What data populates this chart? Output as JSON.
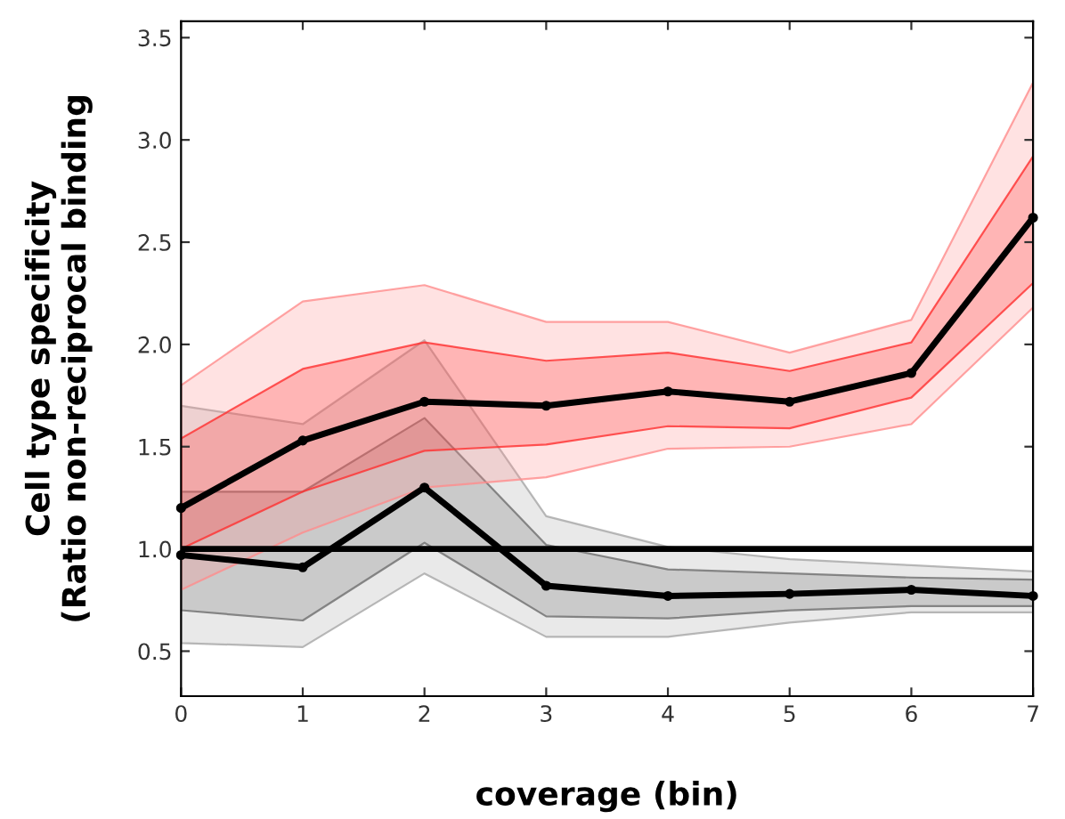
{
  "chart_data": {
    "type": "line",
    "xlabel": "coverage (bin)",
    "ylabel": "Cell type specificity\n(Ratio non-reciprocal binding",
    "x": [
      0,
      1,
      2,
      3,
      4,
      5,
      6,
      7
    ],
    "series": [
      {
        "color": "#a6a6a6",
        "values": [
          null,
          null,
          null,
          null,
          null,
          null,
          null,
          null
        ],
        "lower": [
          0.54,
          0.52,
          0.88,
          0.57,
          0.57,
          0.64,
          0.69,
          0.69
        ],
        "upper": [
          1.7,
          1.61,
          2.02,
          1.16,
          1.01,
          0.95,
          0.92,
          0.89
        ]
      },
      {
        "color": "#6e6e6e",
        "values": [
          null,
          null,
          null,
          null,
          null,
          null,
          null,
          null
        ],
        "lower": [
          0.7,
          0.65,
          1.03,
          0.67,
          0.66,
          0.7,
          0.72,
          0.72
        ],
        "upper": [
          1.28,
          1.28,
          1.64,
          1.02,
          0.9,
          0.88,
          0.86,
          0.85
        ]
      },
      {
        "color": "#ff8c8c",
        "values": [
          null,
          null,
          null,
          null,
          null,
          null,
          null,
          null
        ],
        "lower": [
          0.8,
          1.08,
          1.3,
          1.35,
          1.49,
          1.5,
          1.61,
          2.18
        ],
        "upper": [
          1.8,
          2.21,
          2.29,
          2.11,
          2.11,
          1.96,
          2.12,
          3.28
        ]
      },
      {
        "color": "#ff3030",
        "values": [
          null,
          null,
          null,
          null,
          null,
          null,
          null,
          null
        ],
        "lower": [
          1.0,
          1.28,
          1.48,
          1.51,
          1.6,
          1.59,
          1.74,
          2.3
        ],
        "upper": [
          1.54,
          1.88,
          2.01,
          1.92,
          1.96,
          1.87,
          2.01,
          2.92
        ]
      },
      {
        "color": "#000000",
        "values": [
          1.2,
          1.53,
          1.72,
          1.7,
          1.77,
          1.72,
          1.86,
          2.62
        ]
      },
      {
        "color": "#000000",
        "values": [
          0.97,
          0.91,
          1.3,
          0.82,
          0.77,
          0.78,
          0.8,
          0.77
        ]
      }
    ],
    "ref_lines": [
      {
        "axis": "y",
        "value": 1.0,
        "color": "#000000"
      }
    ],
    "xlim": [
      0,
      7
    ],
    "xticks": [
      0,
      1,
      2,
      3,
      4,
      5,
      6,
      7
    ],
    "ylim": [
      0.28,
      3.58
    ],
    "yticks": [
      {
        "value": 0.5,
        "label": "0.5"
      },
      {
        "value": 1.0,
        "label": "1.0"
      },
      {
        "value": 1.5,
        "label": "1.5"
      },
      {
        "value": 2.0,
        "label": "2.0"
      },
      {
        "value": 2.5,
        "label": "2.5"
      },
      {
        "value": 3.0,
        "label": "3.0"
      },
      {
        "value": 3.5,
        "label": "3.5"
      }
    ],
    "marker": "circle",
    "line_style": "solid",
    "grid": false,
    "legend": false
  }
}
